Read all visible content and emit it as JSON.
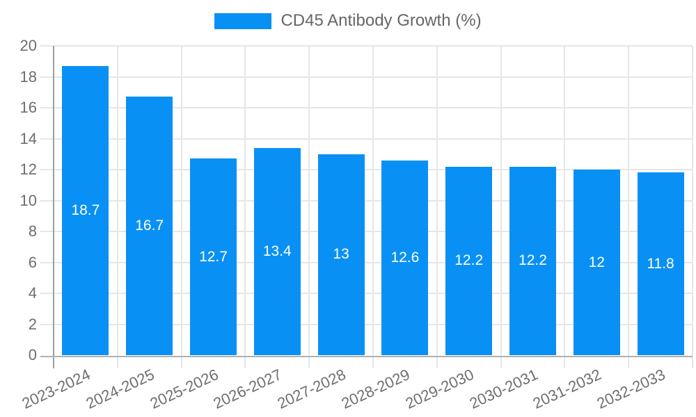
{
  "legend": {
    "label": "CD45 Antibody Growth (%)"
  },
  "chart_data": {
    "type": "bar",
    "title": "CD45 Antibody Growth (%)",
    "categories": [
      "2023-2024",
      "2024-2025",
      "2025-2026",
      "2026-2027",
      "2027-2028",
      "2028-2029",
      "2029-2030",
      "2030-2031",
      "2031-2032",
      "2032-2033"
    ],
    "values": [
      18.7,
      16.7,
      12.7,
      13.4,
      13,
      12.6,
      12.2,
      12.2,
      12,
      11.8
    ],
    "value_labels": [
      "18.7",
      "16.7",
      "12.7",
      "13.4",
      "13",
      "12.6",
      "12.2",
      "12.2",
      "12",
      "11.8"
    ],
    "xlabel": "",
    "ylabel": "",
    "ylim": [
      0,
      20
    ],
    "y_ticks": [
      0,
      2,
      4,
      6,
      8,
      10,
      12,
      14,
      16,
      18,
      20
    ],
    "grid": true,
    "legend_position": "top",
    "colors": {
      "bar": "#0990F5",
      "value_label": "#FFFFFF",
      "tick_label": "#6E6E6E",
      "legend_text": "#666666",
      "gridline": "#E6E6E6",
      "axis_line_y": "#9E9E9E",
      "axis_line_x": "#B0B0B0"
    }
  }
}
